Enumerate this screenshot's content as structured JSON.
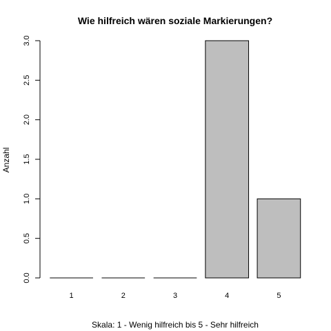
{
  "chart_data": {
    "type": "bar",
    "title": "Wie hilfreich wären soziale Markierungen?",
    "xlabel": "Skala: 1 - Wenig hilfreich bis 5 - Sehr hilfreich",
    "ylabel": "Anzahl",
    "categories": [
      "1",
      "2",
      "3",
      "4",
      "5"
    ],
    "values": [
      0,
      0,
      0,
      3,
      1
    ],
    "ylim": [
      0,
      3
    ],
    "yticks": [
      0,
      0.5,
      1,
      1.5,
      2,
      2.5,
      3
    ],
    "ytick_labels": [
      "0.0",
      "0.5",
      "1.0",
      "1.5",
      "2.0",
      "2.5",
      "3.0"
    ],
    "grid": false,
    "legend": "none",
    "bar_color": "#bebebe",
    "bar_border_color": "#000000"
  }
}
